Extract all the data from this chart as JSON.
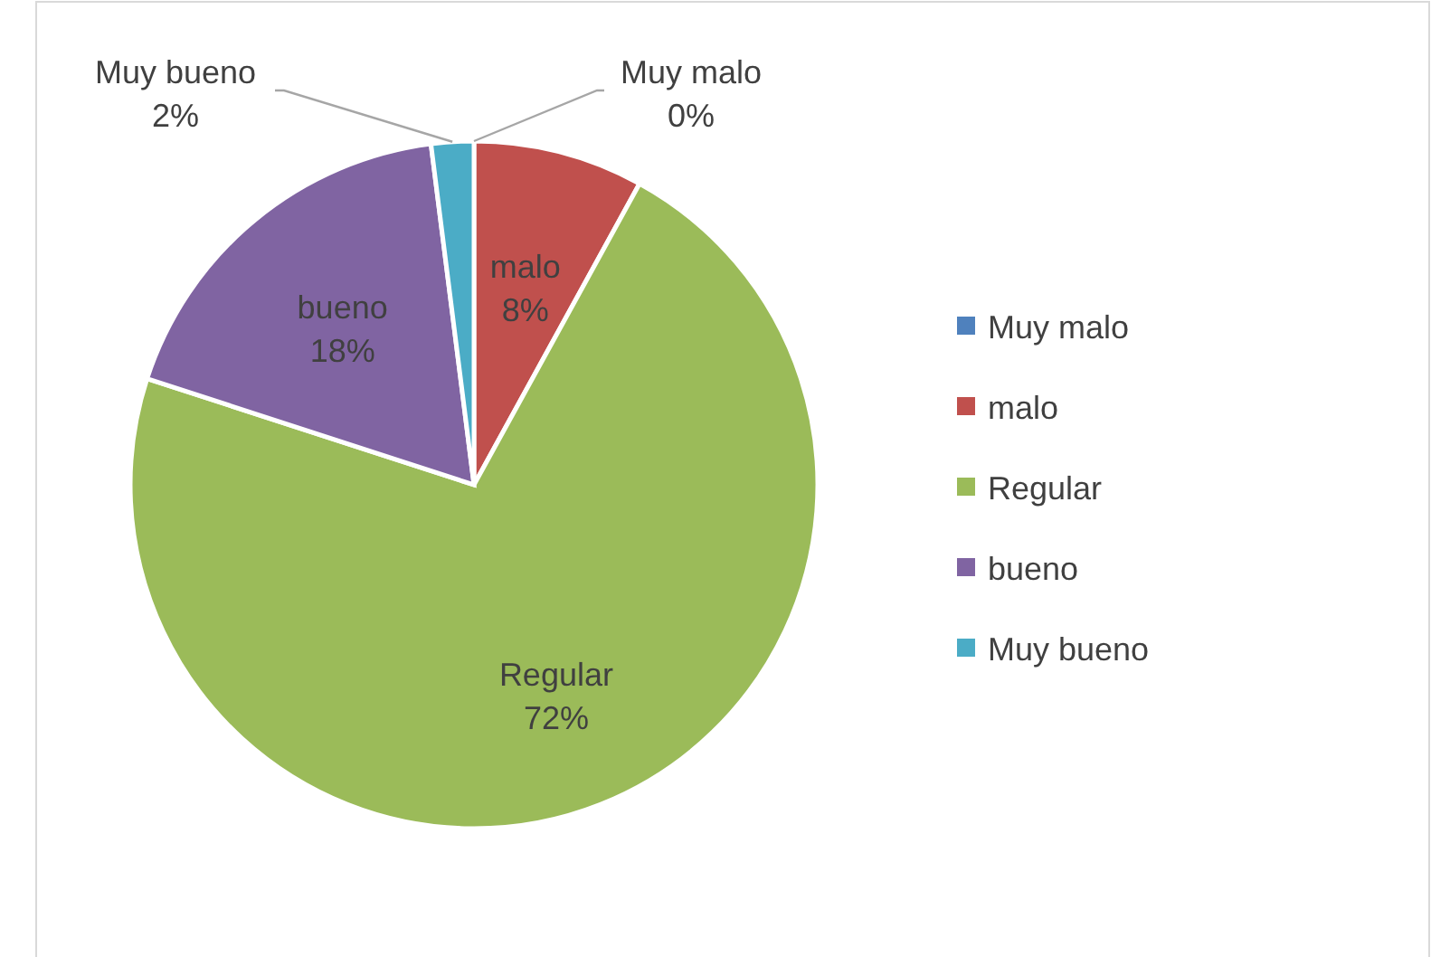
{
  "chart_data": {
    "type": "pie",
    "categories": [
      "Muy malo",
      "malo",
      "Regular",
      "bueno",
      "Muy bueno"
    ],
    "values": [
      0,
      8,
      72,
      18,
      2
    ],
    "colors": [
      "#4f81bd",
      "#c0504d",
      "#9bbb59",
      "#8064a2",
      "#4bacc6"
    ],
    "value_labels": [
      "0%",
      "8%",
      "72%",
      "18%",
      "2%"
    ],
    "legend": "right"
  }
}
